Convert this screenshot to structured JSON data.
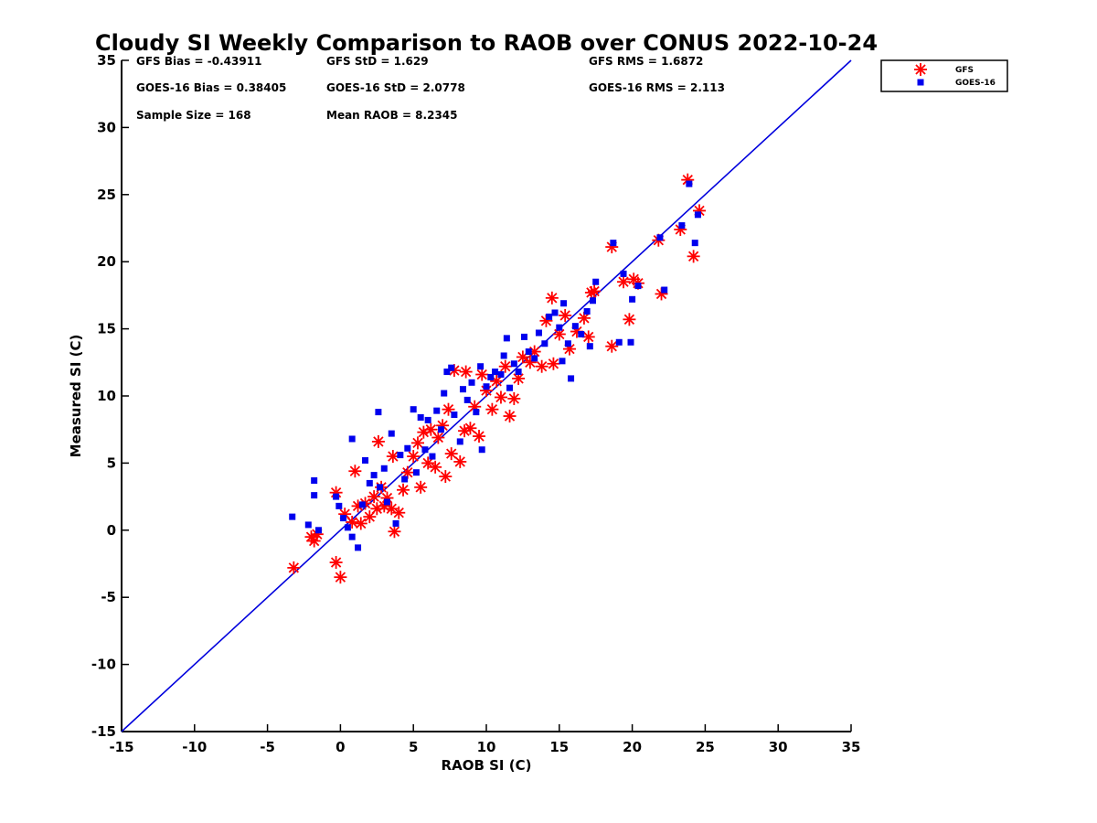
{
  "chart_data": {
    "type": "scatter",
    "title": "Cloudy SI Weekly Comparison to RAOB over CONUS 2022-10-24",
    "xlabel": "RAOB SI (C)",
    "ylabel": "Measured SI (C)",
    "xlim": [
      -15,
      35
    ],
    "ylim": [
      -15,
      35
    ],
    "xticks": [
      -15,
      -10,
      -5,
      0,
      5,
      10,
      15,
      20,
      25,
      30,
      35
    ],
    "yticks": [
      -15,
      -10,
      -5,
      0,
      5,
      10,
      15,
      20,
      25,
      30,
      35
    ],
    "grid": false,
    "legend_position": "top-right, outside plot",
    "reference_line": {
      "from": [
        -15,
        -15
      ],
      "to": [
        35,
        35
      ],
      "color": "#0000dd"
    },
    "stats": {
      "gfs_bias": "GFS Bias = -0.43911",
      "gfs_std": "GFS StD = 1.629",
      "gfs_rms": "GFS RMS = 1.6872",
      "goes_bias": "GOES-16 Bias = 0.38405",
      "goes_std": "GOES-16 StD = 2.0778",
      "goes_rms": "GOES-16 RMS = 2.113",
      "sample_size": "Sample Size = 168",
      "mean_raob": "Mean RAOB = 8.2345"
    },
    "series": [
      {
        "name": "GFS",
        "marker": "asterisk",
        "color": "#ff0000",
        "points": [
          [
            -3.2,
            -2.8
          ],
          [
            -2.0,
            -0.5
          ],
          [
            -1.8,
            -0.8
          ],
          [
            -1.6,
            -0.3
          ],
          [
            -0.3,
            -2.4
          ],
          [
            0.0,
            -3.5
          ],
          [
            -0.3,
            2.8
          ],
          [
            0.3,
            1.2
          ],
          [
            0.8,
            0.6
          ],
          [
            1.0,
            4.4
          ],
          [
            1.2,
            1.8
          ],
          [
            1.4,
            0.5
          ],
          [
            1.7,
            2.0
          ],
          [
            2.0,
            1.0
          ],
          [
            2.3,
            2.5
          ],
          [
            2.5,
            1.6
          ],
          [
            2.6,
            6.6
          ],
          [
            2.8,
            3.2
          ],
          [
            3.0,
            1.8
          ],
          [
            3.2,
            2.4
          ],
          [
            3.5,
            1.6
          ],
          [
            3.7,
            -0.1
          ],
          [
            3.6,
            5.5
          ],
          [
            4.0,
            1.3
          ],
          [
            4.3,
            3.0
          ],
          [
            4.6,
            4.3
          ],
          [
            5.0,
            5.5
          ],
          [
            5.3,
            6.5
          ],
          [
            5.5,
            3.2
          ],
          [
            5.7,
            7.3
          ],
          [
            6.0,
            5.0
          ],
          [
            6.2,
            7.5
          ],
          [
            6.5,
            4.7
          ],
          [
            6.7,
            6.9
          ],
          [
            7.0,
            7.8
          ],
          [
            7.2,
            4.0
          ],
          [
            7.4,
            9.0
          ],
          [
            7.6,
            5.7
          ],
          [
            7.8,
            11.9
          ],
          [
            8.2,
            5.1
          ],
          [
            8.5,
            7.4
          ],
          [
            8.6,
            11.8
          ],
          [
            8.9,
            7.6
          ],
          [
            9.2,
            9.2
          ],
          [
            9.5,
            7.0
          ],
          [
            9.7,
            11.6
          ],
          [
            10.0,
            10.4
          ],
          [
            10.4,
            9.0
          ],
          [
            10.7,
            11.1
          ],
          [
            11.0,
            9.9
          ],
          [
            11.3,
            12.2
          ],
          [
            11.6,
            8.5
          ],
          [
            11.9,
            9.8
          ],
          [
            12.2,
            11.3
          ],
          [
            12.5,
            12.9
          ],
          [
            13.0,
            12.5
          ],
          [
            13.3,
            13.3
          ],
          [
            13.8,
            12.2
          ],
          [
            14.1,
            15.6
          ],
          [
            14.5,
            17.3
          ],
          [
            14.6,
            12.4
          ],
          [
            15.0,
            14.6
          ],
          [
            15.4,
            16.0
          ],
          [
            15.7,
            13.5
          ],
          [
            16.2,
            14.8
          ],
          [
            16.7,
            15.8
          ],
          [
            17.0,
            14.4
          ],
          [
            17.2,
            17.7
          ],
          [
            17.4,
            17.8
          ],
          [
            18.6,
            21.1
          ],
          [
            18.6,
            13.7
          ],
          [
            19.4,
            18.5
          ],
          [
            19.8,
            15.7
          ],
          [
            20.1,
            18.7
          ],
          [
            20.4,
            18.4
          ],
          [
            21.8,
            21.6
          ],
          [
            22.0,
            17.6
          ],
          [
            23.3,
            22.4
          ],
          [
            23.8,
            26.1
          ],
          [
            24.2,
            20.4
          ],
          [
            24.6,
            23.8
          ]
        ]
      },
      {
        "name": "GOES-16",
        "marker": "square",
        "color": "#0000ee",
        "points": [
          [
            -3.3,
            1.0
          ],
          [
            -2.2,
            0.4
          ],
          [
            -1.8,
            3.7
          ],
          [
            -1.8,
            2.6
          ],
          [
            -1.5,
            0.0
          ],
          [
            -0.3,
            2.5
          ],
          [
            -0.1,
            1.8
          ],
          [
            0.2,
            0.9
          ],
          [
            0.5,
            0.2
          ],
          [
            0.8,
            -0.5
          ],
          [
            0.8,
            6.8
          ],
          [
            1.2,
            -1.3
          ],
          [
            1.5,
            1.9
          ],
          [
            1.7,
            5.2
          ],
          [
            2.0,
            3.5
          ],
          [
            2.3,
            4.1
          ],
          [
            2.6,
            8.8
          ],
          [
            2.7,
            3.2
          ],
          [
            3.0,
            4.6
          ],
          [
            3.2,
            2.1
          ],
          [
            3.5,
            7.2
          ],
          [
            3.8,
            0.5
          ],
          [
            4.1,
            5.6
          ],
          [
            4.4,
            3.8
          ],
          [
            4.6,
            6.1
          ],
          [
            5.0,
            9.0
          ],
          [
            5.2,
            4.3
          ],
          [
            5.5,
            8.4
          ],
          [
            5.8,
            6.0
          ],
          [
            6.0,
            8.2
          ],
          [
            6.3,
            5.5
          ],
          [
            6.6,
            8.9
          ],
          [
            6.9,
            7.5
          ],
          [
            7.1,
            10.2
          ],
          [
            7.3,
            11.8
          ],
          [
            7.6,
            12.1
          ],
          [
            7.8,
            8.6
          ],
          [
            8.2,
            6.6
          ],
          [
            8.4,
            10.5
          ],
          [
            8.7,
            9.7
          ],
          [
            9.0,
            11.0
          ],
          [
            9.3,
            8.8
          ],
          [
            9.6,
            12.2
          ],
          [
            9.7,
            6.0
          ],
          [
            10.0,
            10.7
          ],
          [
            10.3,
            11.4
          ],
          [
            10.6,
            11.8
          ],
          [
            11.0,
            11.6
          ],
          [
            11.2,
            13.0
          ],
          [
            11.4,
            14.3
          ],
          [
            11.6,
            10.6
          ],
          [
            11.9,
            12.4
          ],
          [
            12.2,
            11.8
          ],
          [
            12.6,
            14.4
          ],
          [
            12.9,
            13.3
          ],
          [
            13.3,
            12.8
          ],
          [
            13.6,
            14.7
          ],
          [
            14.0,
            13.9
          ],
          [
            14.3,
            15.9
          ],
          [
            14.7,
            16.2
          ],
          [
            15.0,
            15.1
          ],
          [
            15.2,
            12.6
          ],
          [
            15.3,
            16.9
          ],
          [
            15.6,
            13.9
          ],
          [
            15.8,
            11.3
          ],
          [
            16.1,
            15.2
          ],
          [
            16.5,
            14.6
          ],
          [
            16.9,
            16.3
          ],
          [
            17.1,
            13.7
          ],
          [
            17.3,
            17.1
          ],
          [
            17.5,
            18.5
          ],
          [
            18.7,
            21.4
          ],
          [
            19.1,
            14.0
          ],
          [
            19.4,
            19.1
          ],
          [
            19.9,
            14.0
          ],
          [
            20.0,
            17.2
          ],
          [
            20.4,
            18.2
          ],
          [
            21.9,
            21.8
          ],
          [
            22.2,
            17.9
          ],
          [
            23.4,
            22.7
          ],
          [
            23.9,
            25.8
          ],
          [
            24.3,
            21.4
          ],
          [
            24.5,
            23.5
          ]
        ]
      }
    ]
  }
}
